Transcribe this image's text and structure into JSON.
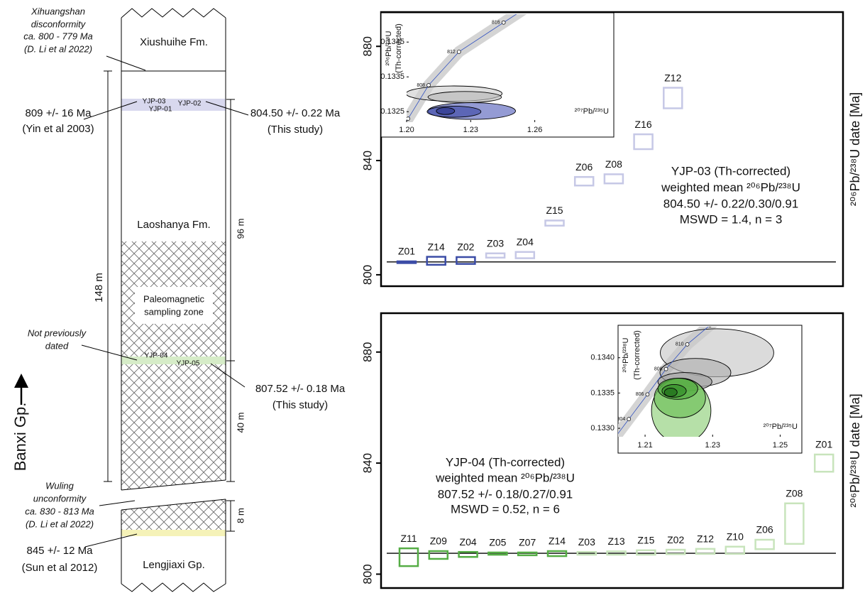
{
  "column": {
    "formations": [
      "Xiushuihe Fm.",
      "Laoshanya Fm.",
      "Lengjiaxi Gp."
    ],
    "group": "Banxi Gp.",
    "zone": [
      "Paleomagnetic",
      "sampling zone"
    ],
    "samples": [
      "YJP-03",
      "YJP-01",
      "YJP-02",
      "YJP-04",
      "YJP-05"
    ],
    "thicknesses": [
      "148 m",
      "96 m",
      "40 m",
      "8 m"
    ],
    "unconformities": [
      [
        "Xihuangshan",
        "disconformity",
        "ca. 800 - 779 Ma",
        "(D. Li et al 2022)"
      ],
      [
        "Wuling",
        "unconformity",
        "ca. 830 - 813 Ma",
        "(D. Li et al 2022)"
      ]
    ],
    "not_dated": [
      "Not previously",
      "dated"
    ],
    "ages": [
      [
        "809 +/- 16 Ma",
        "(Yin et al 2003)"
      ],
      [
        "804.50 +/- 0.22 Ma",
        "(This study)"
      ],
      [
        "807.52 +/- 0.18 Ma",
        "(This study)"
      ],
      [
        "845 +/- 12 Ma",
        "(Sun et al 2012)"
      ]
    ]
  },
  "chart_data": [
    {
      "type": "rank_order",
      "ylabel": "²⁰⁶Pb/²³⁸U date [Ma]",
      "ylim": [
        796,
        892
      ],
      "yticks": [
        800,
        840,
        880
      ],
      "categories": [
        "Z01",
        "Z14",
        "Z02",
        "Z03",
        "Z04",
        "Z15",
        "Z06",
        "Z08",
        "Z16",
        "Z12"
      ],
      "values": [
        804.4,
        804.9,
        805.0,
        806.75,
        806.9,
        818.1,
        832.75,
        833.6,
        846.6,
        861.9
      ],
      "errors": [
        0.3,
        1.4,
        1.2,
        0.75,
        1.1,
        0.9,
        1.5,
        1.6,
        2.6,
        3.6
      ],
      "colors": [
        "#3b4ca6",
        "#3b4ca6",
        "#3b4ca6",
        "#c6c8e6",
        "#c6c8e6",
        "#c6c8e6",
        "#c6c8e6",
        "#c6c8e6",
        "#c6c8e6",
        "#c6c8e6"
      ],
      "mean": 804.5,
      "annotation": [
        "YJP-03 (Th-corrected)",
        "weighted mean ²⁰⁶Pb/²³⁸U",
        "804.50  +/-  0.22/0.30/0.91",
        "MSWD  =  1.4, n  =  3"
      ]
    },
    {
      "type": "concordia",
      "xlabel": "²⁰⁷Pb/²³⁵U",
      "ylabel": [
        "²⁰⁶Pb/²³⁸U",
        "(Th-corrected)"
      ],
      "xlim": [
        1.2,
        1.296
      ],
      "ylim": [
        0.1322,
        0.1353
      ],
      "xticks": [
        {
          "value": 1.2,
          "label": "1.20"
        },
        1.23,
        1.26
      ],
      "yticks": [
        0.1325,
        0.1335,
        0.1345
      ],
      "concordia": {
        "ages": [
          804,
          808,
          812,
          816
        ],
        "x": [
          1.2007,
          1.2103,
          1.2245,
          1.2454
        ],
        "y": [
          0.1323,
          0.13326,
          0.13422,
          0.13506
        ]
      },
      "ellipses": [
        {
          "x": 1.2222,
          "y": 0.13302,
          "sx": 0.0225,
          "sy": 0.00022,
          "color": "#d0d0d0"
        },
        {
          "x": 1.2272,
          "y": 0.13292,
          "sx": 0.0172,
          "sy": 0.00016,
          "color": "#b8b8b8"
        },
        {
          "x": 1.2305,
          "y": 0.13252,
          "sx": 0.0205,
          "sy": 0.00024,
          "color": "#5a66bd"
        },
        {
          "x": 1.2222,
          "y": 0.1325,
          "sx": 0.0126,
          "sy": 0.00016,
          "color": "#3e4aa6"
        },
        {
          "x": 1.2182,
          "y": 0.13252,
          "sx": 0.0043,
          "sy": 0.0001,
          "color": "#2a348a"
        }
      ]
    },
    {
      "type": "rank_order",
      "ylabel": "²⁰⁶Pb/²³⁸U date [Ma]",
      "ylim": [
        795,
        894
      ],
      "yticks": [
        800,
        840,
        880
      ],
      "categories": [
        "Z11",
        "Z09",
        "Z04",
        "Z05",
        "Z07",
        "Z14",
        "Z03",
        "Z13",
        "Z15",
        "Z02",
        "Z12",
        "Z10",
        "Z06",
        "Z08",
        "Z01"
      ],
      "values": [
        806.1,
        806.9,
        807.1,
        807.4,
        807.3,
        807.4,
        807.5,
        807.6,
        807.8,
        808.0,
        808.2,
        808.6,
        810.7,
        818.2,
        840.0
      ],
      "errors": [
        3.2,
        1.4,
        0.9,
        0.4,
        0.5,
        0.9,
        0.5,
        0.6,
        0.8,
        0.8,
        0.9,
        1.3,
        1.7,
        7.3,
        3.1
      ],
      "colors": [
        "#55ad45",
        "#55ad45",
        "#55ad45",
        "#55ad45",
        "#55ad45",
        "#55ad45",
        "#c8e4bc",
        "#c8e4bc",
        "#c8e4bc",
        "#c8e4bc",
        "#c8e4bc",
        "#c8e4bc",
        "#c8e4bc",
        "#c8e4bc",
        "#c8e4bc"
      ],
      "mean": 807.52,
      "annotation": [
        "YJP-04 (Th-corrected)",
        "weighted mean ²⁰⁶Pb/²³⁸U",
        "807.52  +/-  0.18/0.27/0.91",
        "MSWD  =  0.52, n  =  6"
      ]
    },
    {
      "type": "concordia",
      "xlabel": "²⁰⁷Pb/²³⁵U",
      "ylabel": [
        "²⁰⁶Pb/²³⁸U",
        "(Th-corrected)"
      ],
      "xlim": [
        1.202,
        1.256
      ],
      "ylim": [
        0.13288,
        0.13444
      ],
      "xticks": [
        1.21,
        1.23,
        1.25
      ],
      "yticks": [
        {
          "value": 0.133,
          "label": "0.1330"
        },
        0.1335,
        {
          "value": 0.134,
          "label": "0.1340"
        }
      ],
      "concordia": {
        "ages": [
          804,
          806,
          808,
          810,
          812
        ],
        "x": [
          1.2052,
          1.2107,
          1.2162,
          1.2225,
          1.2292
        ],
        "y": [
          0.13313,
          0.13348,
          0.13384,
          0.13419,
          0.13446
        ]
      },
      "ellipses": [
        {
          "x": 1.2313,
          "y": 0.13407,
          "sx": 0.0168,
          "sy": 0.00034,
          "color": "#c8c8c8"
        },
        {
          "x": 1.2249,
          "y": 0.13379,
          "sx": 0.0105,
          "sy": 0.0002,
          "color": "#b0b0b0"
        },
        {
          "x": 1.2218,
          "y": 0.13366,
          "sx": 0.008,
          "sy": 0.00013,
          "color": "#a0a0a0"
        },
        {
          "x": 1.2207,
          "y": 0.13325,
          "sx": 0.0088,
          "sy": 0.00046,
          "color": "#8fd07a"
        },
        {
          "x": 1.2203,
          "y": 0.13343,
          "sx": 0.0076,
          "sy": 0.00028,
          "color": "#6cbf55"
        },
        {
          "x": 1.2197,
          "y": 0.13356,
          "sx": 0.0059,
          "sy": 0.00015,
          "color": "#4da83a"
        },
        {
          "x": 1.2186,
          "y": 0.13353,
          "sx": 0.0036,
          "sy": 9e-05,
          "color": "#2f8a26"
        },
        {
          "x": 1.2176,
          "y": 0.13351,
          "sx": 0.0019,
          "sy": 6e-05,
          "color": "#1f6b18"
        }
      ]
    }
  ]
}
